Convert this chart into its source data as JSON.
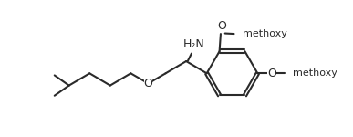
{
  "bg_color": "#ffffff",
  "line_color": "#2a2a2a",
  "line_width": 1.5,
  "fs": 8.5,
  "xlim": [
    0,
    11
  ],
  "ylim": [
    0.2,
    5.8
  ],
  "figsize": [
    3.87,
    1.5
  ],
  "dpi": 100,
  "nh2_label": "H₂N",
  "o_label": "O",
  "methoxy_label": "methoxy",
  "ome1_label": "O",
  "ome2_label": "O",
  "methoxy1_label": "methoxy",
  "methoxy2_label": "methoxy"
}
